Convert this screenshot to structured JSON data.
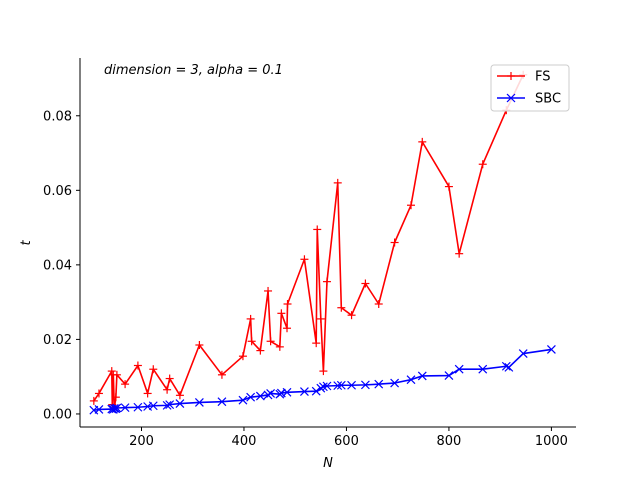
{
  "chart_data": {
    "type": "line",
    "title": "",
    "annotation": "dimension = 3, alpha = 0.1",
    "xlabel": "N",
    "ylabel": "t",
    "xlim": [
      80,
      1048
    ],
    "ylim": [
      -0.0035,
      0.0955
    ],
    "xticks": [
      200,
      400,
      600,
      800,
      1000
    ],
    "yticks": [
      0.0,
      0.02,
      0.04,
      0.06,
      0.08
    ],
    "xtick_labels": [
      "200",
      "400",
      "600",
      "800",
      "1000"
    ],
    "ytick_labels": [
      "0.00",
      "0.02",
      "0.04",
      "0.06",
      "0.08"
    ],
    "grid": false,
    "legend_position": "top-right",
    "series": [
      {
        "name": "FS",
        "color": "#ff0000",
        "marker": "plus",
        "x": [
          107,
          117,
          142,
          143,
          145,
          147,
          150,
          152,
          168,
          193,
          212,
          223,
          250,
          255,
          275,
          313,
          357,
          398,
          413,
          415,
          432,
          447,
          452,
          470,
          473,
          484,
          485,
          518,
          541,
          543,
          550,
          555,
          562,
          583,
          590,
          610,
          637,
          663,
          694,
          726,
          748,
          800,
          820,
          866,
          912,
          945
        ],
        "y": [
          0.0035,
          0.0055,
          0.0115,
          0.0025,
          0.0105,
          0.0015,
          0.0045,
          0.0105,
          0.008,
          0.013,
          0.0055,
          0.012,
          0.0065,
          0.0095,
          0.005,
          0.0185,
          0.0105,
          0.0155,
          0.0255,
          0.0195,
          0.017,
          0.033,
          0.0195,
          0.018,
          0.027,
          0.023,
          0.0295,
          0.0415,
          0.019,
          0.0495,
          0.0255,
          0.0115,
          0.0355,
          0.062,
          0.0285,
          0.0265,
          0.035,
          0.0295,
          0.046,
          0.056,
          0.073,
          0.061,
          0.043,
          0.067,
          0.0815,
          0.091
        ]
      },
      {
        "name": "SBC",
        "color": "#0000ff",
        "marker": "x",
        "x": [
          107,
          117,
          142,
          145,
          147,
          150,
          152,
          168,
          193,
          212,
          223,
          250,
          255,
          275,
          313,
          357,
          398,
          413,
          432,
          447,
          452,
          470,
          473,
          484,
          518,
          541,
          550,
          555,
          562,
          583,
          590,
          610,
          637,
          663,
          694,
          726,
          748,
          800,
          820,
          866,
          912,
          917,
          945,
          1000
        ],
        "y": [
          0.001,
          0.0012,
          0.0013,
          0.0012,
          0.0015,
          0.0014,
          0.0016,
          0.0017,
          0.0018,
          0.002,
          0.0022,
          0.0023,
          0.0025,
          0.0028,
          0.0031,
          0.0033,
          0.0037,
          0.0045,
          0.0048,
          0.0051,
          0.0055,
          0.0053,
          0.0056,
          0.0058,
          0.006,
          0.0061,
          0.0069,
          0.0073,
          0.0075,
          0.0076,
          0.0077,
          0.0077,
          0.0078,
          0.008,
          0.0083,
          0.0092,
          0.0102,
          0.0103,
          0.012,
          0.012,
          0.0128,
          0.0125,
          0.0162,
          0.0173
        ]
      }
    ]
  }
}
